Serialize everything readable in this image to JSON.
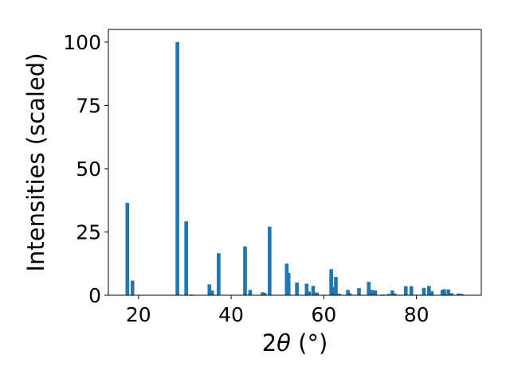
{
  "chart_data": {
    "type": "bar",
    "xlabel_prefix": "2",
    "xlabel_symbol": "θ",
    "xlabel_unit": " (°)",
    "ylabel": "Intensities (scaled)",
    "xlim": [
      13.5,
      94.0
    ],
    "ylim": [
      0,
      105
    ],
    "x_ticks": [
      20,
      40,
      60,
      80
    ],
    "y_ticks": [
      0,
      25,
      50,
      75,
      100
    ],
    "bar_color": "#1f77b4",
    "bar_width_deg": 0.8,
    "grid": false,
    "x": [
      17.6,
      18.7,
      28.4,
      30.3,
      31.5,
      35.3,
      35.9,
      37.3,
      43.0,
      44.1,
      46.8,
      47.2,
      48.3,
      52.0,
      52.4,
      54.2,
      56.3,
      56.8,
      57.7,
      58.5,
      61.6,
      62.1,
      62.6,
      63.3,
      65.2,
      65.6,
      67.6,
      69.7,
      70.4,
      71.1,
      72.8,
      74.0,
      74.8,
      75.3,
      77.7,
      78.9,
      81.6,
      82.7,
      83.3,
      85.6,
      86.0,
      86.9,
      87.6,
      89.1,
      89.8
    ],
    "values": [
      36.5,
      5.8,
      100.0,
      29.2,
      0.3,
      4.3,
      1.9,
      16.6,
      19.3,
      2.1,
      1.2,
      0.9,
      27.1,
      12.5,
      8.8,
      5.0,
      4.6,
      1.5,
      3.7,
      1.1,
      10.3,
      3.3,
      7.2,
      0.6,
      2.1,
      0.8,
      2.8,
      5.3,
      2.1,
      1.9,
      0.3,
      0.5,
      1.9,
      0.7,
      3.6,
      3.6,
      2.9,
      3.7,
      1.6,
      2.1,
      2.4,
      2.3,
      0.8,
      0.7,
      0.5
    ]
  }
}
